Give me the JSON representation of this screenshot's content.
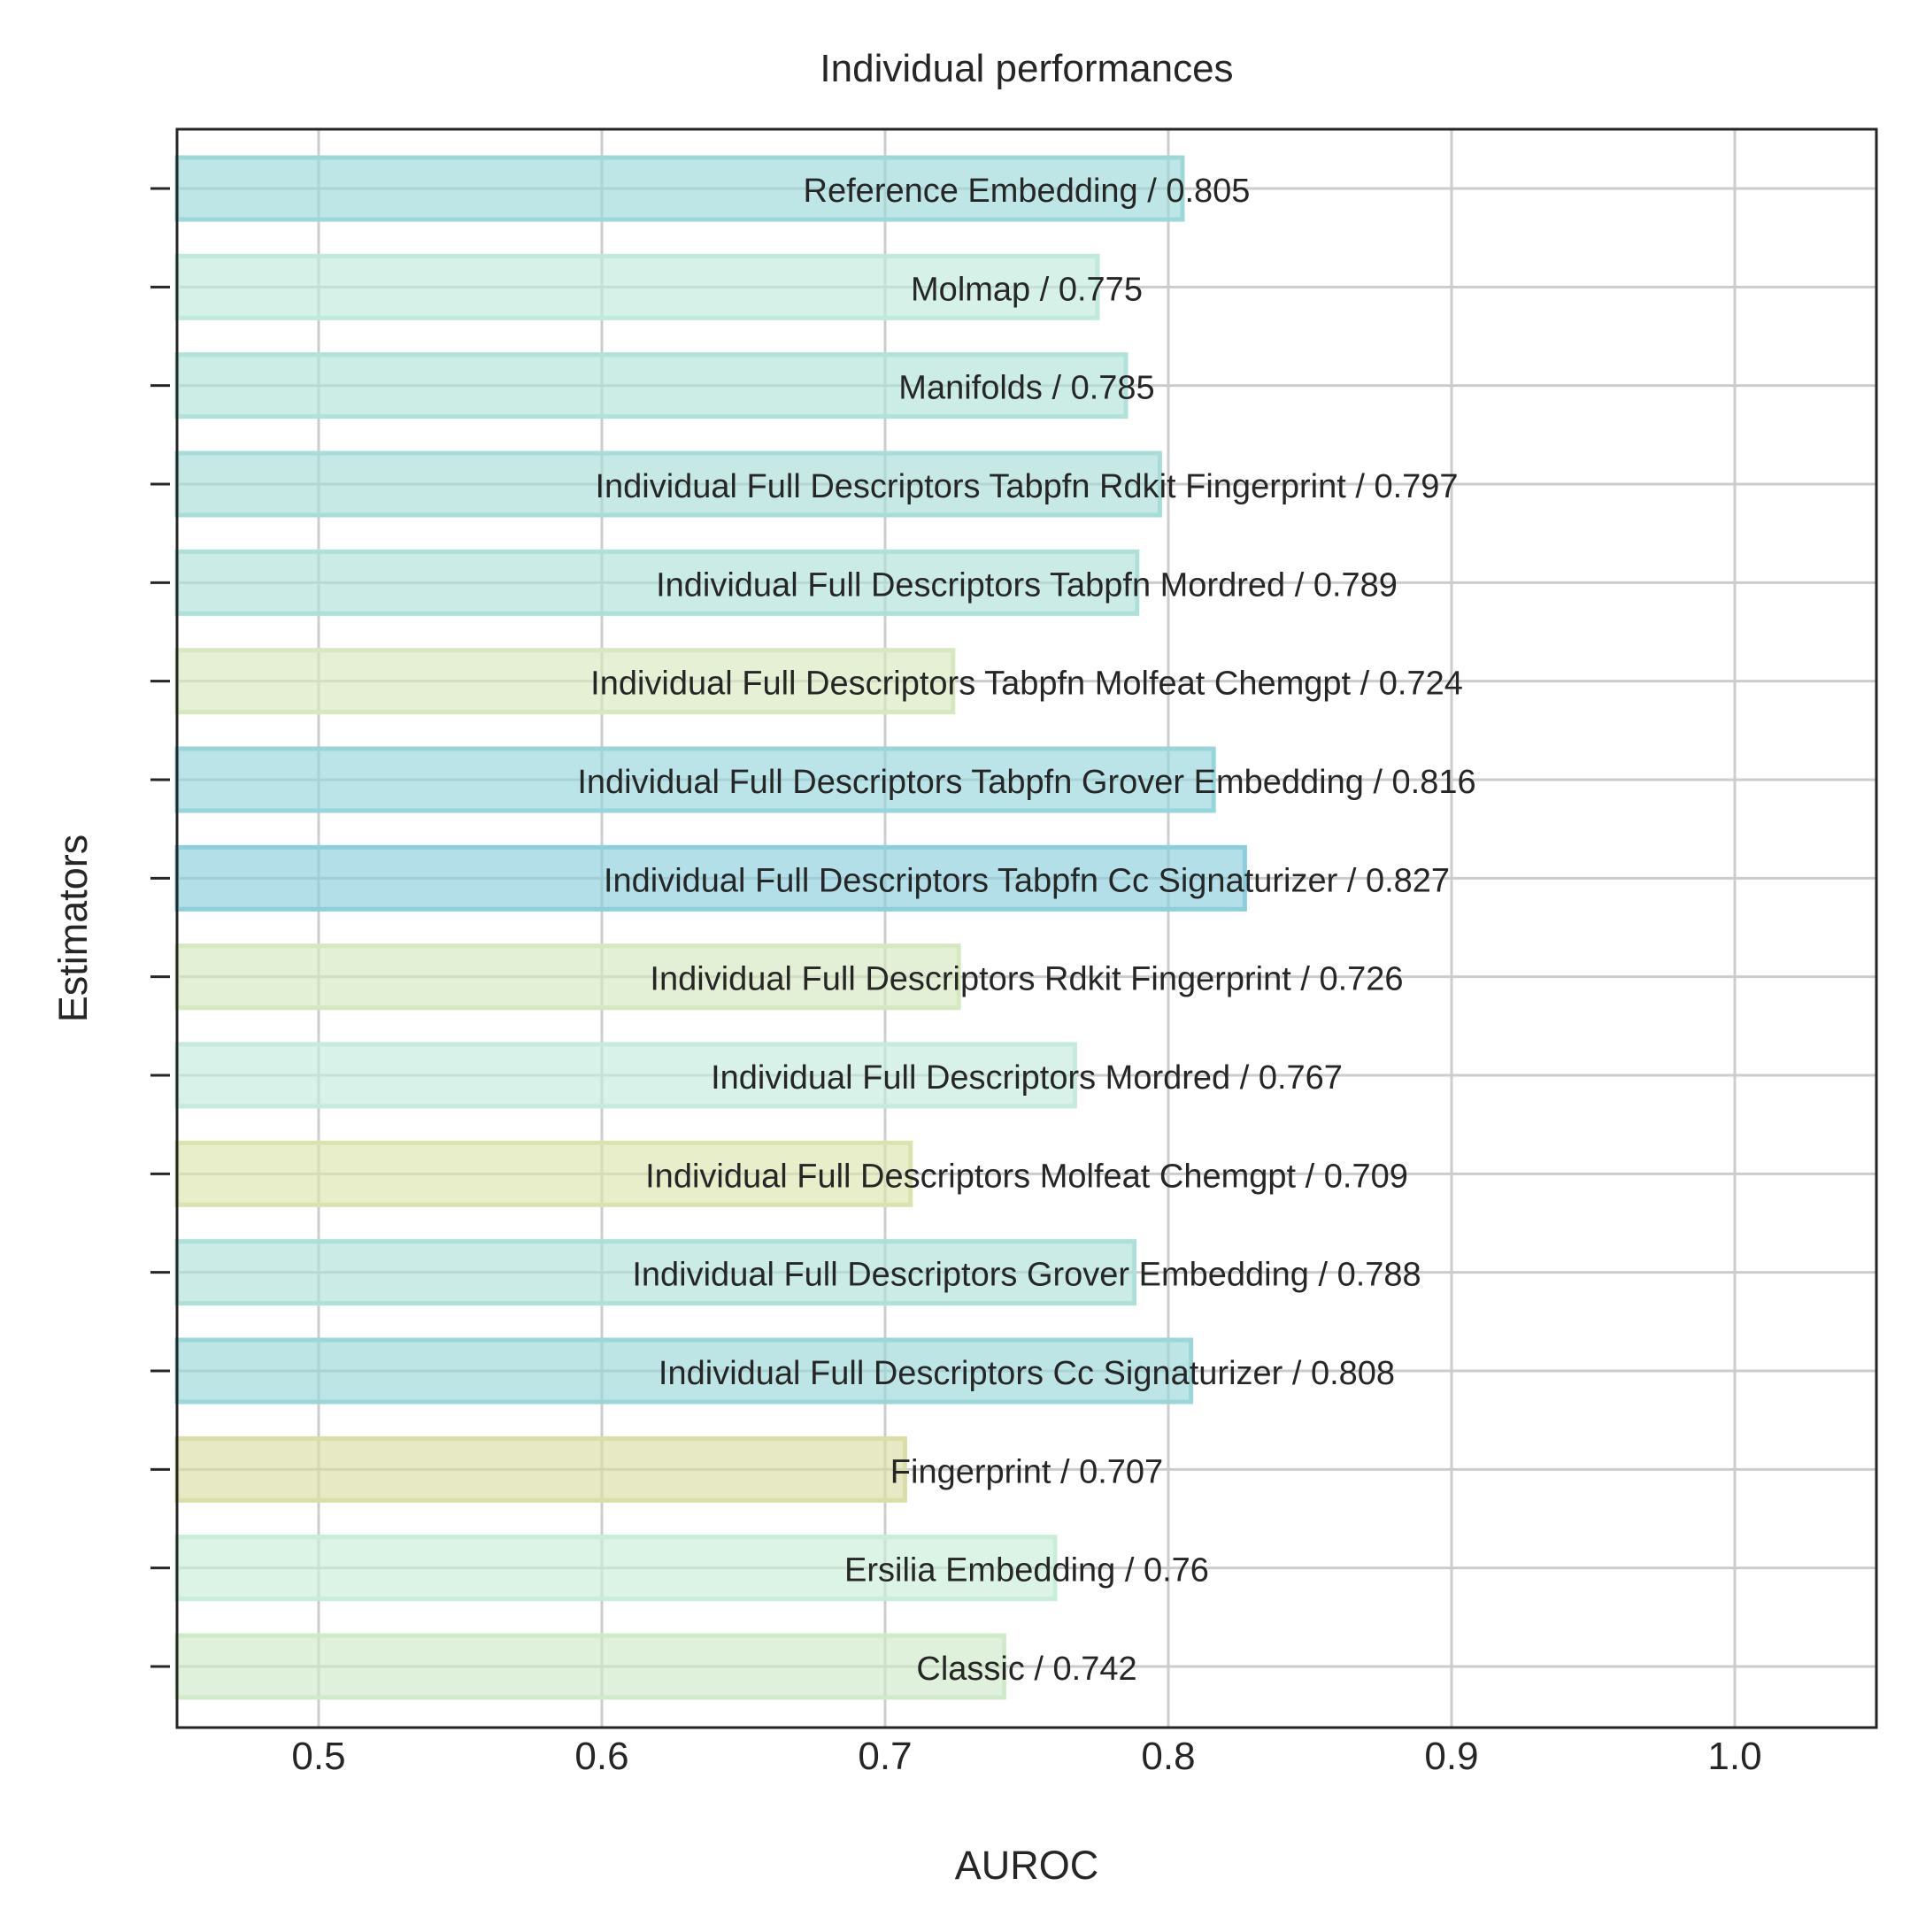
{
  "chart_data": {
    "type": "bar",
    "orientation": "horizontal",
    "title": "Individual performances",
    "xlabel": "AUROC",
    "ylabel": "Estimators",
    "xlim": [
      0.45,
      1.05
    ],
    "xticks": [
      "0.5",
      "0.6",
      "0.7",
      "0.8",
      "0.9",
      "1.0"
    ],
    "grid": true,
    "legend": "none",
    "bars": [
      {
        "label": "Reference Embedding / 0.805",
        "value": 0.805,
        "color": "#9dd8d8"
      },
      {
        "label": "Molmap / 0.775",
        "value": 0.775,
        "color": "#bfe9dc"
      },
      {
        "label": "Manifolds / 0.785",
        "value": 0.785,
        "color": "#b0e2d9"
      },
      {
        "label": "Individual Full Descriptors Tabpfn Rdkit Fingerprint / 0.797",
        "value": 0.797,
        "color": "#a7ddd9"
      },
      {
        "label": "Individual Full Descriptors Tabpfn Mordred / 0.789",
        "value": 0.789,
        "color": "#ade0d9"
      },
      {
        "label": "Individual Full Descriptors Tabpfn Molfeat Chemgpt / 0.724",
        "value": 0.724,
        "color": "#d7e8be"
      },
      {
        "label": "Individual Full Descriptors Tabpfn Grover Embedding / 0.816",
        "value": 0.816,
        "color": "#96d5dc"
      },
      {
        "label": "Individual Full Descriptors Tabpfn Cc Signaturizer / 0.827",
        "value": 0.827,
        "color": "#8bcfdc"
      },
      {
        "label": "Individual Full Descriptors Rdkit Fingerprint / 0.726",
        "value": 0.726,
        "color": "#d5e8bf"
      },
      {
        "label": "Individual Full Descriptors Mordred / 0.767",
        "value": 0.767,
        "color": "#c3ebde"
      },
      {
        "label": "Individual Full Descriptors Molfeat Chemgpt / 0.709",
        "value": 0.709,
        "color": "#dbe3ad"
      },
      {
        "label": "Individual Full Descriptors Grover Embedding / 0.788",
        "value": 0.788,
        "color": "#ade0d9"
      },
      {
        "label": "Individual Full Descriptors Cc Signaturizer / 0.808",
        "value": 0.808,
        "color": "#9bd7d9"
      },
      {
        "label": "Fingerprint / 0.707",
        "value": 0.707,
        "color": "#dadda6"
      },
      {
        "label": "Ersilia Embedding / 0.76",
        "value": 0.76,
        "color": "#c8eed9"
      },
      {
        "label": "Classic / 0.742",
        "value": 0.742,
        "color": "#cfeac7"
      }
    ]
  }
}
